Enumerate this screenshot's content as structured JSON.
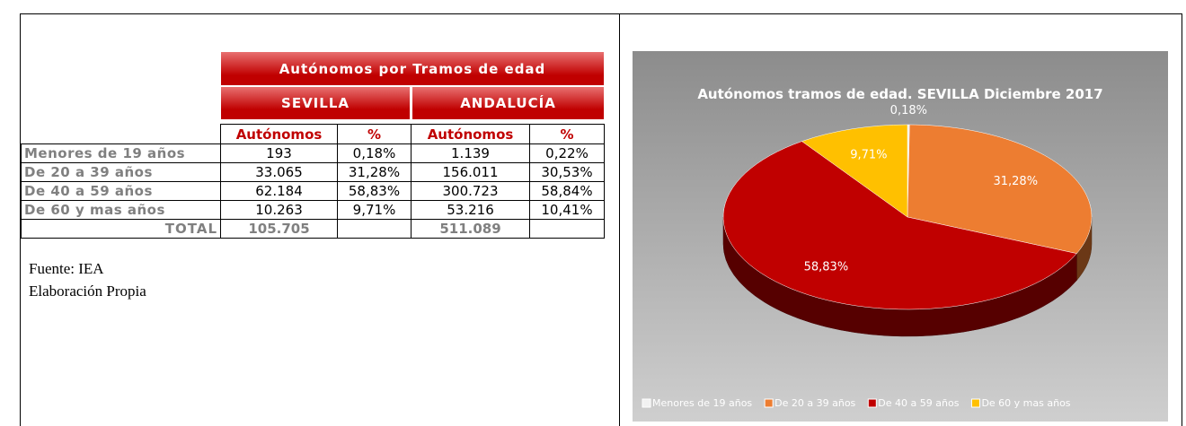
{
  "table": {
    "title": "Autónomos por Tramos de edad",
    "groups": [
      "SEVILLA",
      "ANDALUCÍA"
    ],
    "columns": [
      "Autónomos",
      "%",
      "Autónomos",
      "%"
    ],
    "rows": [
      [
        "Menores de 19 años",
        "193",
        "0,18%",
        "1.139",
        "0,22%"
      ],
      [
        "De 20 a 39 años",
        "33.065",
        "31,28%",
        "156.011",
        "30,53%"
      ],
      [
        "De 40 a 59 años",
        "62.184",
        "58,83%",
        "300.723",
        "58,84%"
      ],
      [
        "De 60 y mas años",
        "10.263",
        "9,71%",
        "53.216",
        "10,41%"
      ]
    ],
    "total": {
      "label": "TOTAL",
      "values": [
        "105.705",
        "511.089"
      ]
    }
  },
  "notes": [
    "Fuente: IEA",
    "Elaboración Propia"
  ],
  "chart_data": {
    "type": "pie",
    "title": "Autónomos tramos de edad. SEVILLA Diciembre 2017",
    "categories": [
      "Menores de 19 años",
      "De 20 a 39 años",
      "De 40 a 59 años",
      "De 60 y mas años"
    ],
    "values": [
      0.18,
      31.28,
      58.83,
      9.71
    ],
    "value_labels": [
      "0,18%",
      "31,28%",
      "58,83%",
      "9,71%"
    ],
    "colors": [
      "#f2f2f2",
      "#ed7d31",
      "#c00000",
      "#ffc000"
    ],
    "legend": "bottom"
  }
}
